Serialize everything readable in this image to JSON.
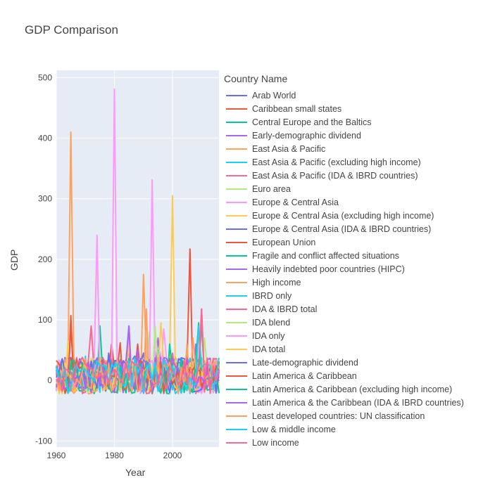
{
  "chart_data": {
    "type": "line",
    "title": "GDP Comparison",
    "xlabel": "Year",
    "ylabel": "GDP",
    "xlim": [
      1960,
      2016
    ],
    "ylim": [
      -110,
      512
    ],
    "x_ticks": [
      1960,
      1980,
      2000
    ],
    "y_ticks": [
      -100,
      0,
      100,
      200,
      300,
      400,
      500
    ],
    "grid": true,
    "legend_title": "Country Name",
    "legend_position": "right",
    "series": [
      {
        "name": "Arab World",
        "color": "#636efa",
        "peaks": [
          [
            1987,
            40
          ],
          [
            2005,
            35
          ]
        ]
      },
      {
        "name": "Caribbean small states",
        "color": "#EF553B",
        "peaks": [
          [
            1965,
            107
          ],
          [
            1979,
            60
          ]
        ]
      },
      {
        "name": "Central Europe and the Baltics",
        "color": "#00cc96",
        "peaks": [
          [
            1975,
            90
          ],
          [
            2010,
            95
          ]
        ]
      },
      {
        "name": "Early-demographic dividend",
        "color": "#ab63fa",
        "peaks": [
          [
            1985,
            90
          ],
          [
            2008,
            60
          ]
        ]
      },
      {
        "name": "East Asia & Pacific",
        "color": "#FFA15A",
        "peaks": [
          [
            1965,
            410
          ],
          [
            1990,
            175
          ]
        ]
      },
      {
        "name": "East Asia & Pacific (excluding high income)",
        "color": "#19d3f3",
        "peaks": [
          [
            1995,
            50
          ]
        ]
      },
      {
        "name": "East Asia & Pacific (IDA & IBRD countries)",
        "color": "#FF6692",
        "peaks": [
          [
            2010,
            118
          ],
          [
            1985,
            45
          ]
        ]
      },
      {
        "name": "Euro area",
        "color": "#B6E880",
        "peaks": [
          [
            1974,
            210
          ],
          [
            1992,
            80
          ]
        ]
      },
      {
        "name": "Europe & Central Asia",
        "color": "#FF97FF",
        "peaks": [
          [
            1980,
            481
          ],
          [
            1993,
            331
          ],
          [
            1974,
            240
          ]
        ]
      },
      {
        "name": "Europe & Central Asia (excluding high income)",
        "color": "#FECB52",
        "peaks": [
          [
            2000,
            305
          ],
          [
            1985,
            60
          ]
        ]
      },
      {
        "name": "Europe & Central Asia (IDA & IBRD countries)",
        "color": "#636efa",
        "peaks": [
          [
            1990,
            45
          ]
        ]
      },
      {
        "name": "European Union",
        "color": "#EF553B",
        "peaks": [
          [
            2006,
            217
          ],
          [
            1988,
            60
          ]
        ]
      },
      {
        "name": "Fragile and conflict affected situations",
        "color": "#00cc96",
        "peaks": [
          [
            2009,
            95
          ]
        ]
      },
      {
        "name": "Heavily indebted poor countries (HIPC)",
        "color": "#ab63fa",
        "peaks": [
          [
            1985,
            90
          ],
          [
            1995,
            70
          ]
        ]
      },
      {
        "name": "High income",
        "color": "#FFA15A",
        "peaks": [
          [
            1991,
            118
          ],
          [
            2005,
            60
          ]
        ]
      },
      {
        "name": "IBRD only",
        "color": "#19d3f3",
        "peaks": [
          [
            1970,
            40
          ]
        ]
      },
      {
        "name": "IDA & IBRD total",
        "color": "#FF6692",
        "peaks": [
          [
            1972,
            90
          ],
          [
            2000,
            45
          ]
        ]
      },
      {
        "name": "IDA blend",
        "color": "#B6E880",
        "peaks": [
          [
            1994,
            90
          ],
          [
            2011,
            70
          ]
        ]
      },
      {
        "name": "IDA only",
        "color": "#FF97FF",
        "peaks": [
          [
            1997,
            85
          ]
        ]
      },
      {
        "name": "IDA total",
        "color": "#FECB52",
        "peaks": [
          [
            1996,
            95
          ],
          [
            1964,
            65
          ]
        ]
      },
      {
        "name": "Late-demographic dividend",
        "color": "#636efa",
        "peaks": [
          [
            1978,
            45
          ]
        ]
      },
      {
        "name": "Latin America & Caribbean",
        "color": "#EF553B",
        "peaks": [
          [
            1982,
            62
          ],
          [
            1965,
            90
          ]
        ]
      },
      {
        "name": "Latin America & Caribbean (excluding high income)",
        "color": "#00cc96",
        "peaks": [
          [
            1999,
            60
          ]
        ]
      },
      {
        "name": "Latin America & the Caribbean (IDA & IBRD countries)",
        "color": "#ab63fa",
        "peaks": [
          [
            1988,
            50
          ]
        ]
      },
      {
        "name": "Least developed countries: UN classification",
        "color": "#FFA15A",
        "peaks": [
          [
            2007,
            70
          ]
        ]
      },
      {
        "name": "Low & middle income",
        "color": "#19d3f3",
        "peaks": [
          [
            2009,
            90
          ]
        ]
      },
      {
        "name": "Low income",
        "color": "#FF6692",
        "peaks": [
          [
            2010,
            118
          ]
        ]
      }
    ]
  }
}
